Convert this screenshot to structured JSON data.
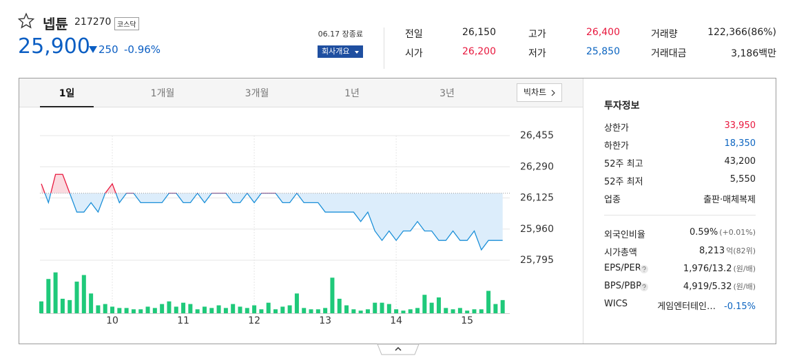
{
  "header": {
    "name": "넵튠",
    "code": "217270",
    "market": "코스닥",
    "price": "25,900",
    "change": "250",
    "change_rate": "-0.96%",
    "session": "06.17 장종료",
    "company_button": "회사개요"
  },
  "summary": [
    {
      "label": "전일",
      "value": "26,150",
      "color": "#222222"
    },
    {
      "label": "고가",
      "value": "26,400",
      "color": "#e8173d"
    },
    {
      "label": "거래량",
      "value": "122,366(86%)",
      "color": "#222222"
    },
    {
      "label": "시가",
      "value": "26,200",
      "color": "#e8173d"
    },
    {
      "label": "저가",
      "value": "25,850",
      "color": "#0b64c0"
    },
    {
      "label": "거래대금",
      "value": "3,186백만",
      "color": "#222222"
    }
  ],
  "tabs": [
    "1일",
    "1개월",
    "3개월",
    "1년",
    "3년"
  ],
  "bigchart": "빅차트",
  "chart_data": [
    {
      "type": "line",
      "x": [
        9,
        9.1,
        9.2,
        9.3,
        9.4,
        9.5,
        9.6,
        9.7,
        9.8,
        9.9,
        10,
        10.1,
        10.2,
        10.3,
        10.4,
        10.5,
        10.6,
        10.7,
        10.8,
        10.9,
        11,
        11.1,
        11.2,
        11.3,
        11.4,
        11.5,
        11.6,
        11.7,
        11.8,
        11.9,
        12,
        12.1,
        12.2,
        12.3,
        12.4,
        12.5,
        12.6,
        12.7,
        12.8,
        12.9,
        13,
        13.1,
        13.2,
        13.3,
        13.4,
        13.5,
        13.6,
        13.7,
        13.8,
        13.9,
        14,
        14.1,
        14.2,
        14.3,
        14.4,
        14.5,
        14.6,
        14.7,
        14.8,
        14.9,
        15,
        15.1,
        15.2,
        15.3,
        15.4,
        15.5
      ],
      "values": [
        26200,
        26100,
        26250,
        26250,
        26150,
        26050,
        26050,
        26100,
        26050,
        26150,
        26200,
        26100,
        26150,
        26150,
        26100,
        26100,
        26100,
        26100,
        26150,
        26150,
        26100,
        26100,
        26150,
        26100,
        26150,
        26150,
        26150,
        26100,
        26100,
        26150,
        26100,
        26150,
        26150,
        26150,
        26100,
        26100,
        26150,
        26100,
        26100,
        26100,
        26050,
        26050,
        26050,
        26050,
        26050,
        26000,
        26050,
        25950,
        25900,
        25950,
        25900,
        25950,
        25950,
        26000,
        25950,
        25950,
        25900,
        25900,
        25950,
        25900,
        25900,
        25950,
        25850,
        25900,
        25900,
        25900
      ],
      "xlim": [
        9,
        15.6
      ],
      "xticks": [
        10,
        11,
        12,
        13,
        14,
        15
      ],
      "ylim": [
        25795,
        26455
      ],
      "yticks": [
        {
          "value": 26455,
          "label": "26,455"
        },
        {
          "value": 26290,
          "label": "26,290"
        },
        {
          "value": 26125,
          "label": "26,125"
        },
        {
          "value": 25960,
          "label": "25,960"
        },
        {
          "value": 25795,
          "label": "25,795"
        }
      ],
      "reference_line": 26150,
      "up_color": "#e8173d",
      "down_color": "#1a8fd8",
      "up_fill": "#fadadf",
      "down_fill": "#dcedfb",
      "grid": true
    },
    {
      "type": "bar",
      "values": [
        1800,
        5200,
        6200,
        2200,
        2000,
        4800,
        5800,
        3000,
        1200,
        1400,
        1000,
        800,
        800,
        600,
        600,
        1000,
        800,
        1400,
        1800,
        1000,
        1600,
        1400,
        600,
        1000,
        800,
        1200,
        800,
        1400,
        1000,
        800,
        1200,
        600,
        1600,
        600,
        1000,
        1200,
        3000,
        800,
        600,
        600,
        800,
        5400,
        2200,
        1200,
        600,
        400,
        600,
        1600,
        1600,
        1400,
        600,
        400,
        600,
        800,
        2800,
        1600,
        2400,
        800,
        600,
        800,
        400,
        600,
        600,
        3400,
        1400,
        2000
      ],
      "ylim": [
        0,
        7000
      ],
      "color": "#1fc97a"
    }
  ],
  "info": {
    "title": "투자정보",
    "groups": [
      [
        {
          "label": "상한가",
          "value": "33,950",
          "color": "#e8173d"
        },
        {
          "label": "하한가",
          "value": "18,350",
          "color": "#0b64c0"
        },
        {
          "label": "52주 최고",
          "value": "43,200",
          "color": "#222222"
        },
        {
          "label": "52주 최저",
          "value": "5,550",
          "color": "#222222"
        },
        {
          "label": "업종",
          "value": "출판·매체복제",
          "color": "#222222"
        }
      ],
      [
        {
          "label": "외국인비율",
          "value": "0.59%",
          "note": "(+0.01%)",
          "color": "#222222"
        },
        {
          "label": "시가총액",
          "value": "8,213",
          "note": "억(82위)",
          "color": "#222222"
        },
        {
          "label": "EPS/PER",
          "value": "1,976/13.2",
          "note": "(원/배)",
          "help": true,
          "color": "#222222"
        },
        {
          "label": "BPS/PBR",
          "value": "4,919/5.32",
          "note": "(원/배)",
          "help": true,
          "color": "#222222"
        },
        {
          "label": "WICS",
          "value": "게임엔터테인…",
          "note": "-0.15%",
          "note_color": "#0b64c0",
          "color": "#222222"
        }
      ]
    ]
  }
}
